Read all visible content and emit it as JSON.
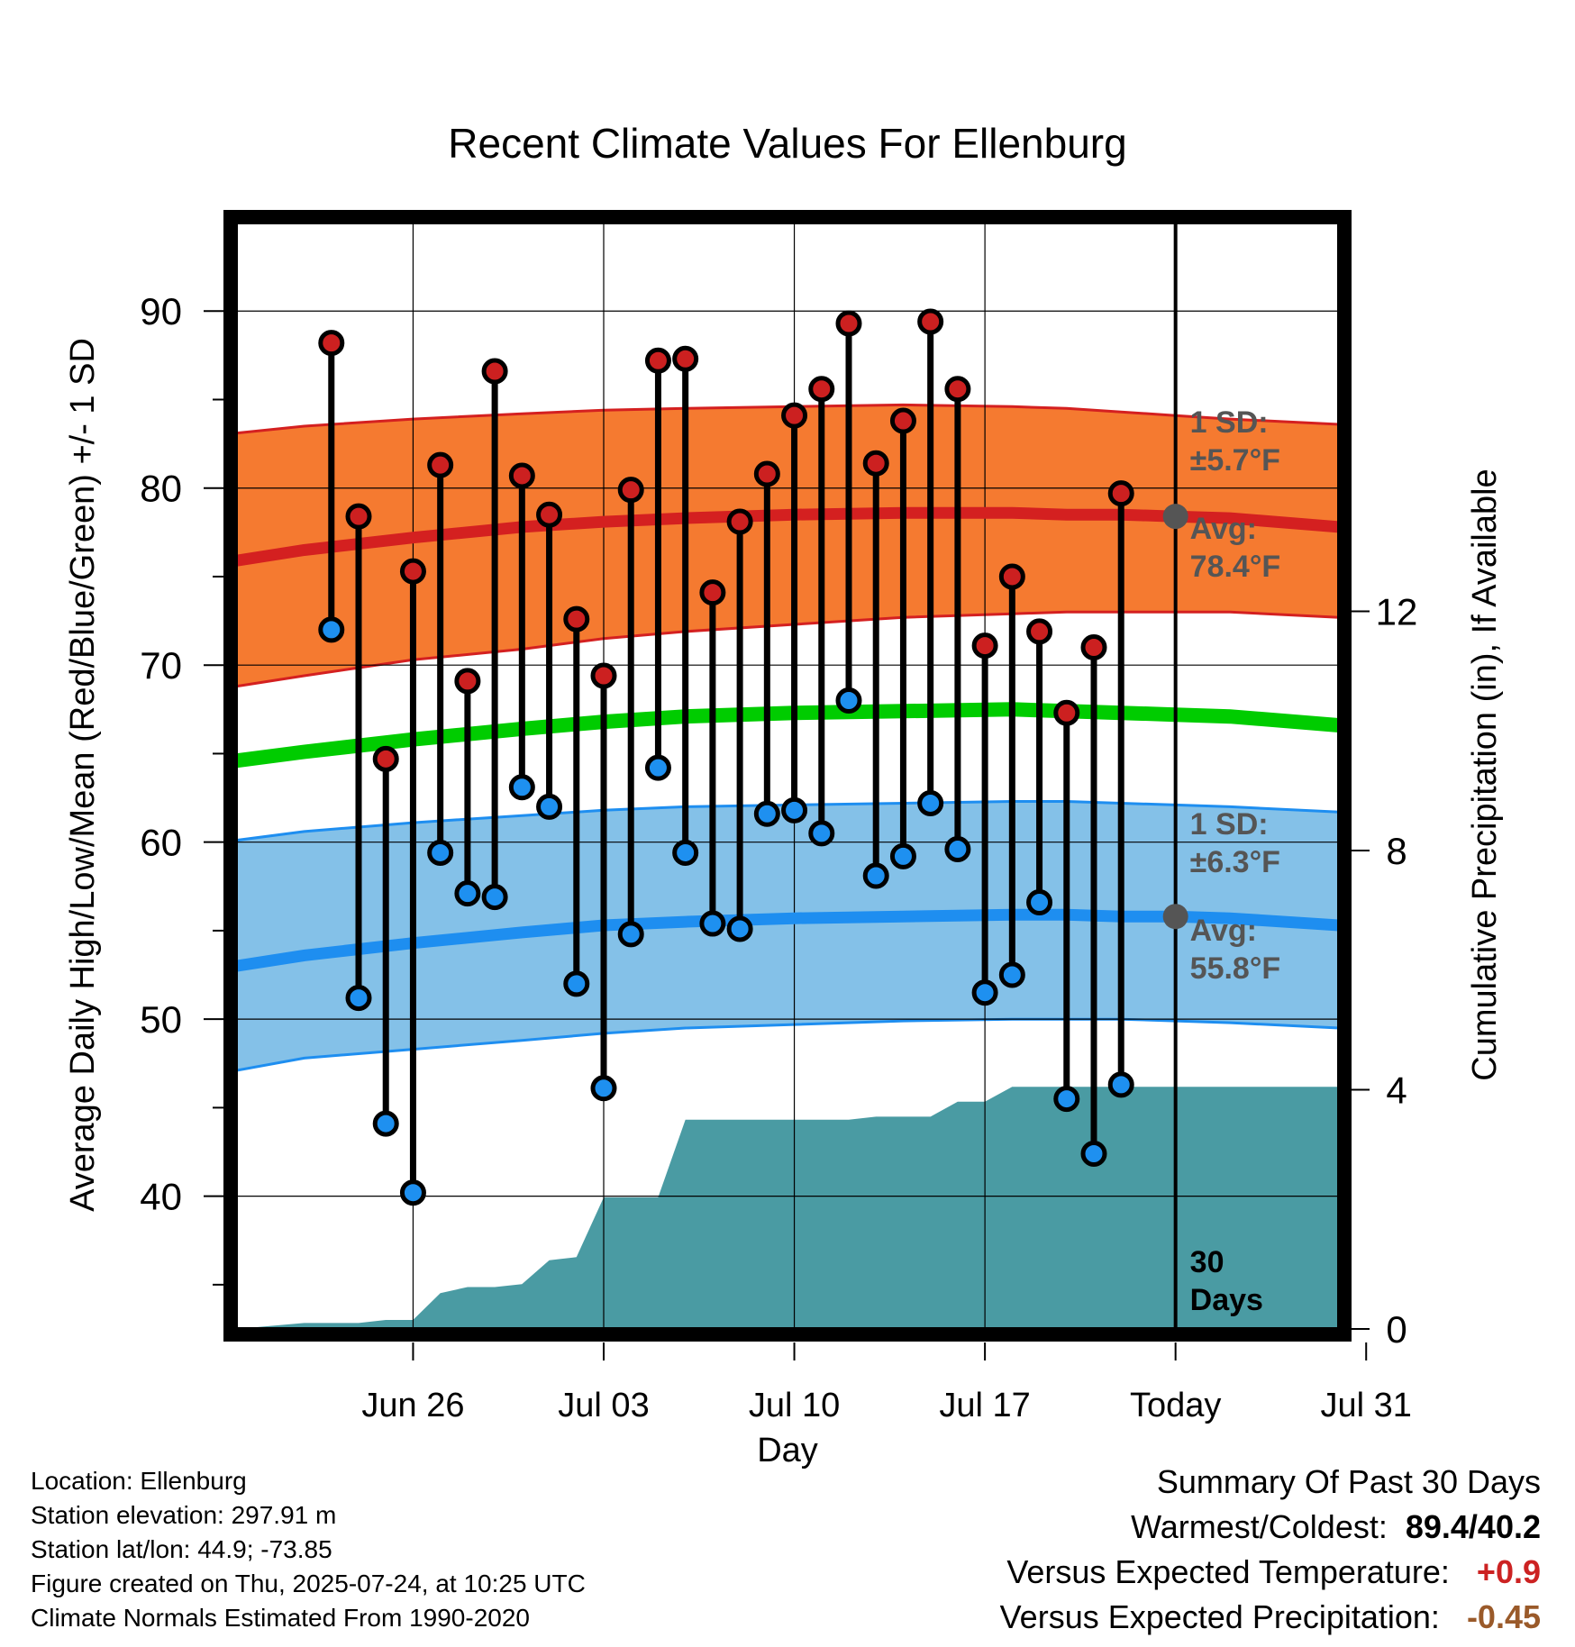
{
  "title": "Recent Climate Values For Ellenburg",
  "colors": {
    "high_band": "#f57a30",
    "high_line": "#d42020",
    "low_band": "#84c1e8",
    "low_line": "#1e8ef0",
    "mean_line": "#00cc00",
    "precip": "#4a9ba3",
    "high_marker": "#cc2020",
    "low_marker": "#1e90f0",
    "today_marker": "#555555"
  },
  "chart_data": {
    "type": "line",
    "title": "Recent Climate Values For Ellenburg",
    "xlabel": "Day",
    "ylabel": "Average Daily High/Low/Mean (Red/Blue/Green) +/- 1 SD",
    "y2label": "Cumulative Precipitation (in), If Available",
    "ylim": [
      32.5,
      95
    ],
    "y2lim": [
      0,
      18.5
    ],
    "yticks": [
      40,
      50,
      60,
      70,
      80,
      90
    ],
    "y2ticks": [
      0,
      4,
      8,
      12
    ],
    "x_range_days": [
      -30.5,
      10
    ],
    "xticks": [
      {
        "day": -24,
        "label": "Jun 26"
      },
      {
        "day": -17,
        "label": "Jul 03"
      },
      {
        "day": -10,
        "label": "Jul 10"
      },
      {
        "day": -3,
        "label": "Jul 17"
      },
      {
        "day": 4,
        "label": "Today"
      },
      {
        "day": 11,
        "label": "Jul 31"
      }
    ],
    "grid": true,
    "observations": {
      "days": [
        -27,
        -26,
        -25,
        -24,
        -23,
        -22,
        -21,
        -20,
        -19,
        -18,
        -17,
        -16,
        -15,
        -14,
        -13,
        -12,
        -11,
        -10,
        -9,
        -8,
        -7,
        -6,
        -5,
        -4,
        -3,
        -2,
        -1,
        0,
        1,
        2,
        3
      ],
      "highs": [
        88.2,
        78.4,
        64.7,
        75.3,
        81.3,
        69.1,
        86.6,
        80.7,
        78.5,
        72.6,
        69.4,
        79.9,
        87.2,
        87.3,
        74.1,
        78.1,
        80.8,
        84.1,
        85.6,
        89.3,
        81.4,
        83.8,
        89.4,
        85.6,
        71.1,
        75.0,
        71.9,
        67.3,
        71.0,
        79.7,
        null
      ],
      "lows": [
        72.0,
        51.2,
        44.1,
        40.2,
        59.4,
        57.1,
        56.9,
        63.1,
        62.0,
        52.0,
        46.1,
        54.8,
        64.2,
        59.4,
        55.4,
        55.1,
        61.6,
        61.8,
        60.5,
        68.0,
        58.1,
        59.2,
        62.2,
        59.6,
        51.5,
        52.5,
        56.6,
        45.5,
        42.4,
        46.3,
        null
      ]
    },
    "normals": {
      "days": [
        -30.5,
        -28,
        -24,
        -20,
        -17,
        -14,
        -10,
        -6,
        -2,
        0,
        2,
        4,
        6,
        10
      ],
      "high_avg": [
        75.9,
        76.5,
        77.2,
        77.8,
        78.1,
        78.3,
        78.5,
        78.6,
        78.6,
        78.5,
        78.5,
        78.4,
        78.3,
        77.8
      ],
      "high_upper": [
        83.1,
        83.5,
        83.9,
        84.2,
        84.4,
        84.5,
        84.6,
        84.7,
        84.6,
        84.5,
        84.3,
        84.1,
        83.9,
        83.6
      ],
      "high_lower": [
        68.8,
        69.4,
        70.3,
        70.9,
        71.5,
        71.9,
        72.3,
        72.7,
        72.9,
        73.0,
        73.0,
        73.0,
        73.0,
        72.7
      ],
      "mean_avg": [
        64.6,
        65.1,
        65.8,
        66.4,
        66.8,
        67.1,
        67.3,
        67.4,
        67.5,
        67.4,
        67.3,
        67.2,
        67.1,
        66.6
      ],
      "low_avg": [
        53.0,
        53.6,
        54.3,
        54.9,
        55.3,
        55.5,
        55.7,
        55.8,
        55.9,
        55.9,
        55.8,
        55.8,
        55.7,
        55.3
      ],
      "low_upper": [
        60.1,
        60.6,
        61.1,
        61.5,
        61.8,
        62.0,
        62.1,
        62.2,
        62.3,
        62.3,
        62.2,
        62.1,
        62.0,
        61.7
      ],
      "low_lower": [
        47.1,
        47.8,
        48.3,
        48.8,
        49.2,
        49.5,
        49.7,
        49.9,
        50.0,
        50.0,
        50.0,
        49.9,
        49.8,
        49.5
      ]
    },
    "precipitation": {
      "days": [
        -30.5,
        -28,
        -26,
        -25,
        -24,
        -23,
        -22,
        -21,
        -20,
        -19,
        -18,
        -17,
        -16,
        -15,
        -14,
        -13,
        -12,
        -11,
        -10,
        -9,
        -8,
        -7,
        -6,
        -5,
        -4,
        -3,
        -2,
        -1,
        0,
        1,
        2,
        3,
        4,
        10
      ],
      "cumulative": [
        0,
        0.1,
        0.1,
        0.15,
        0.15,
        0.6,
        0.7,
        0.7,
        0.75,
        1.15,
        1.2,
        2.2,
        2.2,
        2.2,
        3.5,
        3.5,
        3.5,
        3.5,
        3.5,
        3.5,
        3.5,
        3.55,
        3.55,
        3.55,
        3.8,
        3.8,
        4.05,
        4.05,
        4.05,
        4.05,
        4.05,
        4.05,
        4.05,
        4.05
      ]
    },
    "annotations": {
      "high_sd": "1 SD:",
      "high_sd_value": "±5.7°F",
      "high_avg_label": "Avg:",
      "high_avg_value": "78.4°F",
      "low_sd": "1 SD:",
      "low_sd_value": "±6.3°F",
      "low_avg_label": "Avg:",
      "low_avg_value": "55.8°F",
      "today_high": 78.4,
      "today_low": 55.8,
      "days_count": "30",
      "days_word": "Days"
    }
  },
  "info": {
    "location": "Location: Ellenburg",
    "elevation": "Station elevation: 297.91 m",
    "latlon": "Station lat/lon: 44.9; -73.85",
    "created": "Figure created on Thu, 2025-07-24, at 10:25 UTC",
    "normals": "Climate Normals Estimated From 1990-2020"
  },
  "summary": {
    "heading": "Summary Of Past 30 Days",
    "warm_label": "Warmest/Coldest:",
    "warm_value": "89.4/40.2",
    "temp_label": "Versus Expected Temperature:",
    "temp_value": "+0.9",
    "precip_label": "Versus Expected Precipitation:",
    "precip_value": "-0.45"
  }
}
